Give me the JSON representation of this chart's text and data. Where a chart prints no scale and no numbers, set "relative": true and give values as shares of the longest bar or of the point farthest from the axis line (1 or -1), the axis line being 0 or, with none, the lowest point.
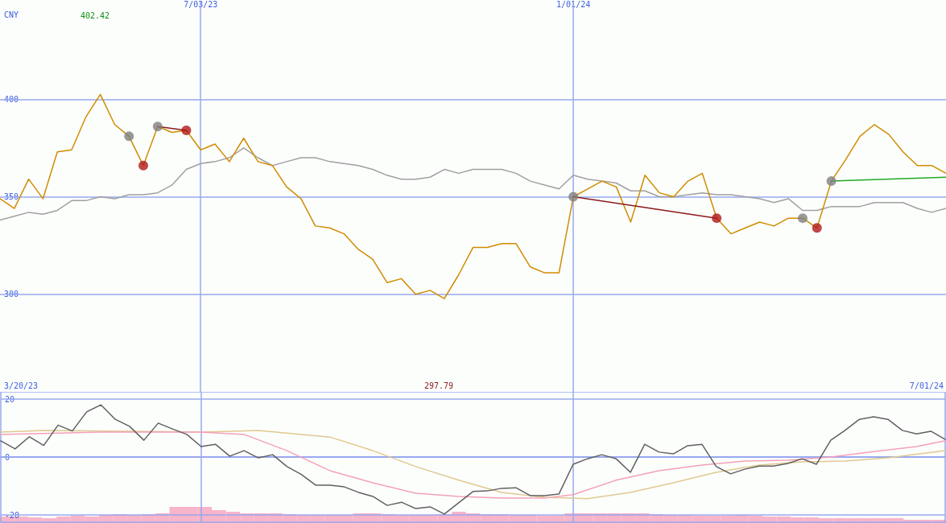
{
  "chart_data": [
    {
      "type": "line",
      "ylabel": "CNY",
      "marker": "none",
      "line_style": "solid",
      "grid": true,
      "x": [
        "2023-03-27",
        "2023-04-03",
        "2023-04-10",
        "2023-04-17",
        "2023-04-24",
        "2023-05-01",
        "2023-05-08",
        "2023-05-15",
        "2023-05-22",
        "2023-05-29",
        "2023-06-05",
        "2023-06-12",
        "2023-06-19",
        "2023-06-26",
        "2023-07-03",
        "2023-07-10",
        "2023-07-17",
        "2023-07-24",
        "2023-07-31",
        "2023-08-07",
        "2023-08-14",
        "2023-08-21",
        "2023-08-28",
        "2023-09-04",
        "2023-09-11",
        "2023-09-18",
        "2023-09-25",
        "2023-10-02",
        "2023-10-09",
        "2023-10-16",
        "2023-10-23",
        "2023-10-30",
        "2023-11-06",
        "2023-11-13",
        "2023-11-20",
        "2023-11-27",
        "2023-12-04",
        "2023-12-11",
        "2023-12-18",
        "2023-12-25",
        "2024-01-01",
        "2024-01-08",
        "2024-01-15",
        "2024-01-22",
        "2024-01-29",
        "2024-02-05",
        "2024-02-12",
        "2024-02-19",
        "2024-02-26",
        "2024-03-04",
        "2024-03-11",
        "2024-03-18",
        "2024-03-25",
        "2024-04-01",
        "2024-04-08",
        "2024-04-15",
        "2024-04-22",
        "2024-04-29",
        "2024-05-06",
        "2024-05-13",
        "2024-05-20",
        "2024-05-27",
        "2024-06-03",
        "2024-06-10",
        "2024-06-17",
        "2024-06-24",
        "2024-07-01"
      ],
      "xlim": [
        "2023-03-27",
        "2024-07-01"
      ],
      "xticks": [
        {
          "value": "2023-07-03",
          "label": "7/03/23"
        },
        {
          "value": "2024-01-01",
          "label": "1/01/24"
        }
      ],
      "ylim": [
        250,
        450
      ],
      "yticks": [
        300,
        350,
        400
      ],
      "series": [
        {
          "type": "line",
          "color": "#a0a0a0",
          "values": [
            338,
            340,
            342,
            341,
            343,
            348,
            348,
            350,
            349,
            351,
            351,
            352,
            356,
            364,
            367,
            368,
            370,
            375,
            370,
            366,
            368,
            370,
            370,
            368,
            367,
            366,
            364,
            361,
            359,
            359,
            360,
            364,
            362,
            364,
            364,
            364,
            362,
            358,
            356,
            354,
            361,
            359,
            358,
            357,
            353,
            353,
            350,
            350,
            351,
            352,
            351,
            351,
            350,
            349,
            347,
            349,
            343,
            343,
            345,
            345,
            345,
            347,
            347,
            347,
            344,
            342,
            344
          ]
        },
        {
          "type": "line",
          "color": "#d08c00",
          "values": [
            349,
            344,
            359,
            349,
            373,
            374,
            391,
            402.42,
            387,
            381,
            366,
            386,
            383,
            384,
            374,
            377,
            368,
            380,
            368,
            366,
            355,
            349,
            335,
            334,
            331,
            323,
            318,
            306,
            308,
            300,
            302,
            297.79,
            310,
            324,
            324,
            326,
            326,
            314,
            311,
            311,
            350,
            354,
            358,
            355,
            337,
            361,
            352,
            350,
            358,
            362,
            339,
            331,
            334,
            337,
            335,
            339,
            339,
            334,
            358,
            369,
            381,
            387,
            382,
            373,
            366,
            366,
            362
          ]
        },
        {
          "type": "line",
          "color": "#8b1a1a",
          "x": [
            "2023-06-12",
            "2023-06-26"
          ],
          "values": [
            386,
            384
          ]
        },
        {
          "type": "line",
          "color": "#8b1a1a",
          "x": [
            "2024-01-01",
            "2024-03-11"
          ],
          "values": [
            350,
            339
          ]
        },
        {
          "type": "line",
          "color": "#22aa22",
          "x": [
            "2024-05-06",
            "2024-07-01"
          ],
          "values": [
            358,
            360
          ]
        },
        {
          "type": "scatter",
          "marker": "circle",
          "color": "#808080",
          "x": [
            "2023-05-29",
            "2023-06-12",
            "2024-01-01",
            "2024-04-22",
            "2024-05-06"
          ],
          "values": [
            381,
            386,
            350,
            339,
            358
          ]
        },
        {
          "type": "scatter",
          "marker": "circle",
          "color": "#b01818",
          "x": [
            "2023-06-05",
            "2023-06-26",
            "2024-03-11",
            "2024-04-29"
          ],
          "values": [
            366,
            384,
            339,
            334
          ]
        }
      ],
      "annotations": [
        "402.42",
        "297.79",
        "3/20/23",
        "7/01/24"
      ]
    },
    {
      "type": "line",
      "marker": "none",
      "line_style": "solid",
      "grid": true,
      "tick_labels": "y",
      "ref_lines": [
        {
          "axis": "y",
          "value": 0
        }
      ],
      "x": [
        "2023-03-27",
        "2023-04-03",
        "2023-04-10",
        "2023-04-17",
        "2023-04-24",
        "2023-05-01",
        "2023-05-08",
        "2023-05-15",
        "2023-05-22",
        "2023-05-29",
        "2023-06-05",
        "2023-06-12",
        "2023-06-19",
        "2023-06-26",
        "2023-07-03",
        "2023-07-10",
        "2023-07-17",
        "2023-07-24",
        "2023-07-31",
        "2023-08-07",
        "2023-08-14",
        "2023-08-21",
        "2023-08-28",
        "2023-09-04",
        "2023-09-11",
        "2023-09-18",
        "2023-09-25",
        "2023-10-02",
        "2023-10-09",
        "2023-10-16",
        "2023-10-23",
        "2023-10-30",
        "2023-11-06",
        "2023-11-13",
        "2023-11-20",
        "2023-11-27",
        "2023-12-04",
        "2023-12-11",
        "2023-12-18",
        "2023-12-25",
        "2024-01-01",
        "2024-01-08",
        "2024-01-15",
        "2024-01-22",
        "2024-01-29",
        "2024-02-05",
        "2024-02-12",
        "2024-02-19",
        "2024-02-26",
        "2024-03-04",
        "2024-03-11",
        "2024-03-18",
        "2024-03-25",
        "2024-04-01",
        "2024-04-08",
        "2024-04-15",
        "2024-04-22",
        "2024-04-29",
        "2024-05-06",
        "2024-05-13",
        "2024-05-20",
        "2024-05-27",
        "2024-06-03",
        "2024-06-10",
        "2024-06-17",
        "2024-06-24",
        "2024-07-01"
      ],
      "xlim": [
        "2023-03-27",
        "2024-07-01"
      ],
      "xticks": [
        {
          "value": "2023-07-03",
          "label": null
        },
        {
          "value": "2024-01-01",
          "label": null
        }
      ],
      "ylim": [
        -22.5,
        22.5
      ],
      "yticks": [
        -20,
        0,
        20
      ],
      "series": [
        {
          "type": "line",
          "color": "#e0c890",
          "x": [
            "2023-03-27",
            "2023-04-17",
            "2023-05-29",
            "2023-07-03",
            "2023-07-31",
            "2023-09-04",
            "2023-09-25",
            "2023-10-16",
            "2023-11-06",
            "2023-11-27",
            "2023-12-18",
            "2024-01-08",
            "2024-01-29",
            "2024-02-19",
            "2024-03-11",
            "2024-04-01",
            "2024-04-22",
            "2024-05-13",
            "2024-06-03",
            "2024-07-01"
          ],
          "values": [
            8.6,
            9.2,
            8.9,
            8.6,
            9.2,
            6.9,
            2.2,
            -3.3,
            -8,
            -12.2,
            -13.9,
            -14.4,
            -12.2,
            -8.9,
            -5.3,
            -2.8,
            -1.7,
            -1.4,
            -0.3,
            2.2
          ]
        },
        {
          "type": "line",
          "color": "#f4a0b8",
          "x": [
            "2023-03-27",
            "2023-05-15",
            "2023-07-03",
            "2023-07-24",
            "2023-08-14",
            "2023-09-04",
            "2023-09-25",
            "2023-10-16",
            "2023-11-06",
            "2023-11-27",
            "2023-12-18",
            "2024-01-01",
            "2024-01-22",
            "2024-02-12",
            "2024-03-04",
            "2024-03-25",
            "2024-04-15",
            "2024-05-06",
            "2024-05-27",
            "2024-06-17",
            "2024-07-01"
          ],
          "values": [
            7.8,
            8.6,
            8.6,
            7.8,
            2.2,
            -4.7,
            -8.9,
            -12.5,
            -13.6,
            -14.2,
            -14.2,
            -13,
            -8,
            -4.7,
            -2.8,
            -1.4,
            -1.1,
            0,
            1.9,
            3.6,
            5.6
          ]
        },
        {
          "type": "line",
          "color": "#606060",
          "values": [
            5.6,
            2.8,
            7,
            4,
            11,
            9,
            15.6,
            18,
            13,
            10.6,
            5.8,
            11.7,
            9.7,
            7.8,
            3.6,
            4.4,
            0.3,
            2.2,
            -0.3,
            0.8,
            -3.3,
            -6,
            -9.7,
            -9.7,
            -10.3,
            -12.2,
            -13.6,
            -16.7,
            -15.6,
            -17.8,
            -17.2,
            -19.7,
            -15.8,
            -11.9,
            -11.7,
            -10.8,
            -10.6,
            -13.3,
            -13.3,
            -12.8,
            -2.5,
            -0.6,
            0.8,
            -0.6,
            -5.3,
            4.4,
            1.7,
            1.1,
            3.9,
            4.4,
            -3.3,
            -5.8,
            -4.2,
            -3.1,
            -3.1,
            -2.2,
            -0.6,
            -2.5,
            5.8,
            9.2,
            13,
            13.9,
            13,
            9.2,
            8,
            8.9,
            6.1
          ]
        }
      ]
    },
    {
      "type": "bar",
      "relative": true,
      "color": "#f8b4c8",
      "categories": [
        null,
        null,
        null,
        null,
        null,
        null,
        null,
        null,
        null,
        null,
        null,
        null,
        null,
        null,
        null,
        null,
        null,
        null,
        null,
        null,
        null,
        null,
        null,
        null,
        null,
        null,
        null,
        null,
        null,
        null,
        null,
        null,
        null,
        null,
        null,
        null,
        null,
        null,
        null,
        null,
        null,
        null,
        null,
        null,
        null,
        null,
        null,
        null,
        null,
        null,
        null,
        null,
        null,
        null,
        null,
        null,
        null,
        null,
        null,
        null,
        null,
        null,
        null,
        null,
        null,
        null,
        null
      ],
      "values": [
        0.4,
        0.4,
        0.35,
        0.3,
        0.4,
        0.45,
        0.4,
        0.5,
        0.55,
        0.5,
        0.55,
        0.6,
        1,
        1,
        1,
        0.8,
        0.7,
        0.6,
        0.6,
        0.6,
        0.55,
        0.5,
        0.5,
        0.5,
        0.5,
        0.6,
        0.6,
        0.55,
        0.5,
        0.5,
        0.5,
        0.55,
        0.7,
        0.6,
        0.55,
        0.55,
        0.5,
        0.5,
        0.45,
        0.45,
        0.6,
        0.6,
        0.6,
        0.6,
        0.6,
        0.6,
        0.55,
        0.5,
        0.5,
        0.45,
        0.45,
        0.45,
        0.5,
        0.45,
        0.4,
        0.4,
        0.35,
        0.35,
        0.3,
        0.3,
        0.3,
        0.3,
        0.3,
        0.3,
        0.2,
        0.2,
        0.2
      ]
    }
  ]
}
